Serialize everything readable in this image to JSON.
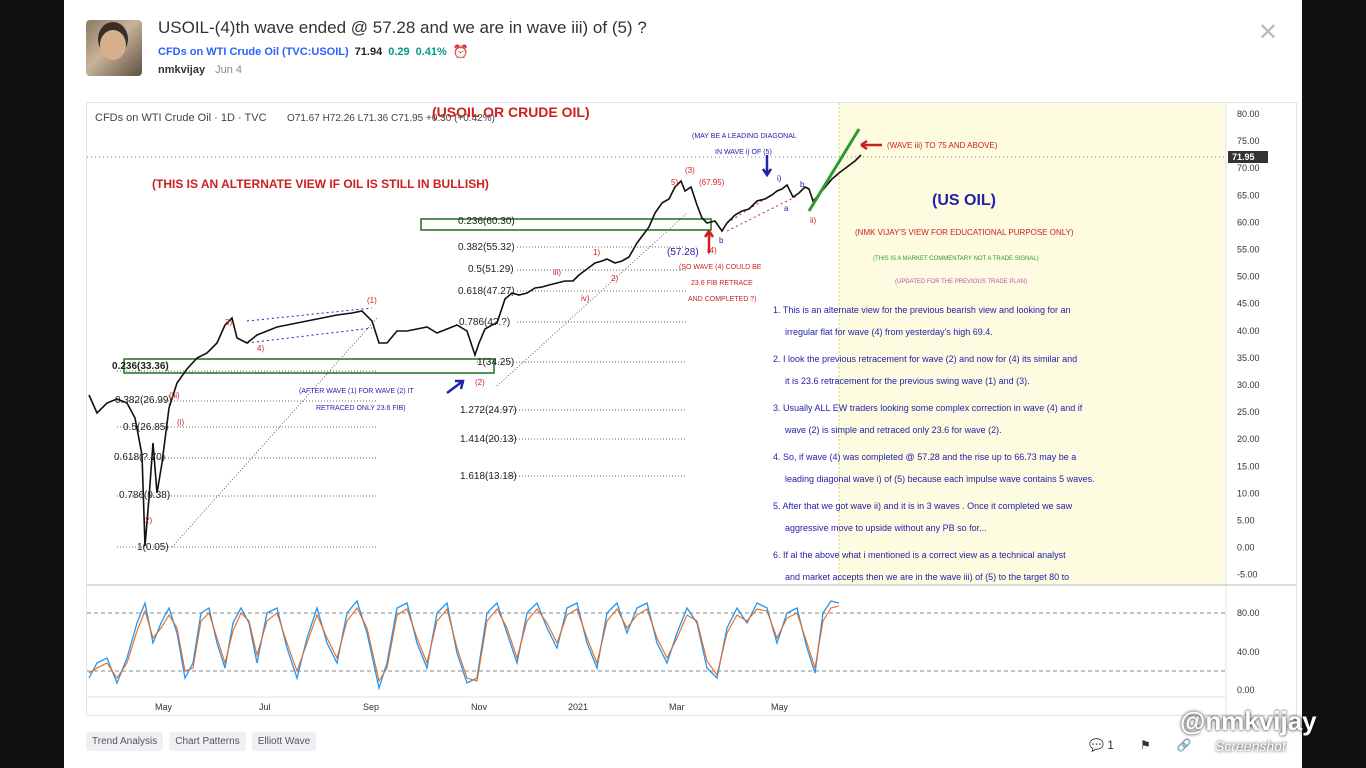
{
  "idea": {
    "title": "USOIL-(4)th wave ended @ 57.28 and we are in wave iii) of (5) ?",
    "symbol": "CFDs on WTI Crude Oil (TVC:USOIL)",
    "price": "71.94",
    "change": "0.29",
    "change_pct": "0.41%",
    "author": "nmkvijay",
    "date": "Jun 4"
  },
  "chart_header": {
    "name": "CFDs on WTI Crude Oil · 1D · TVC",
    "ohlc": "O71.67 H72.26 L71.36 C71.95 +0.30 (+0.42%)",
    "overlay_title": "(USOIL OR CRUDE OIL)"
  },
  "price_axis": {
    "ticks": [
      "80.00",
      "75.00",
      "70.00",
      "65.00",
      "60.00",
      "55.00",
      "50.00",
      "45.00",
      "40.00",
      "35.00",
      "30.00",
      "25.00",
      "20.00",
      "15.00",
      "10.00",
      "5.00",
      "0.00",
      "-5.00"
    ],
    "last_price": "71.95"
  },
  "osc_axis": {
    "ticks": [
      "80.00",
      "40.00",
      "0.00"
    ]
  },
  "time_axis": [
    "May",
    "Jul",
    "Sep",
    "Nov",
    "2021",
    "Mar",
    "May"
  ],
  "fib_levels_left": [
    "0.236(33.36)",
    "0.382(26.99)",
    "0.5(26.85)",
    "0.618(?.70)",
    "0.786(9.38)",
    "1(0.05)"
  ],
  "fib_levels_mid": [
    "0.786(4?.?)",
    "1(34.25)",
    "1.272(24.97)",
    "1.414(20.13)",
    "1.618(13.18)"
  ],
  "fib_levels_top": [
    "0.236(60.30)",
    "0.382(55.32)",
    "0.5(51.29)",
    "0.618(47.27)"
  ],
  "annotations": {
    "alternate_view": "(THIS IS AN ALTERNATE VIEW IF OIL IS STILL IN BULLISH)",
    "wave2_note_1": "(AFTER WAVE (1) FOR WAVE (2) IT",
    "wave2_note_2": "RETRACED ONLY 23.6 FIB)",
    "wave4_level": "(57.28)",
    "wave4_note_1": "(SO WAVE (4) COULD BE",
    "wave4_note_2": "23.6 FIB RETRACE",
    "wave4_note_3": "AND COMPLETED ?)",
    "leading_1": "(MAY BE A LEADING DIAGONAL",
    "leading_2": "IN WAVE i) OF (5)",
    "wave_iii_target": "(WAVE iii) TO 75 AND ABOVE)",
    "peak_label": "(67.95)"
  },
  "commentary": {
    "heading": "(US OIL)",
    "sub1": "(NMK VIJAY'S VIEW FOR EDUCATIONAL PURPOSE ONLY)",
    "sub2": "(THIS IS A MARKET COMMENTARY NOT A TRADE SIGNAL)",
    "sub3": "(UPDATED FOR THE PREVIOUS TRADE PLAN)",
    "lines": [
      "1. This is an alternate view for the previous bearish view and looking for an",
      "irregular flat for wave (4) from yesterday's high 69.4.",
      "2. I look the previous retracement for wave (2) and now for (4) its similar and",
      "it is 23.6 retracement for the previous swing wave (1) and (3).",
      "3. Usually ALL EW traders looking some complex correction in wave (4) and if",
      "wave (2) is simple and retraced only 23.6 for wave (2).",
      "4. So, if wave (4) was completed @ 57.28 and the rise up to 66.73 may be a",
      "leading diagonal wave i) of (5) because each impulse wave contains 5 waves.",
      "5. After that we got wave ii) and it is in 3 waves . Once it completed we saw",
      "aggressive move to upside without any PB so for...",
      "6. If al the above what i mentioned is a correct view as a technical analyst",
      "and market accepts then we are in the wave iii) of (5) to the target 80 to"
    ]
  },
  "tags": [
    "Trend Analysis",
    "Chart Patterns",
    "Elliott Wave"
  ],
  "actions": {
    "comments": "1"
  },
  "watermark": "@nmkvijay",
  "watermark2": "Screenshot",
  "colors": {
    "up": "#089981",
    "accent": "#2962ff",
    "red": "#cc1f1f",
    "navy": "#2323a8",
    "green": "#2e9a2e"
  }
}
